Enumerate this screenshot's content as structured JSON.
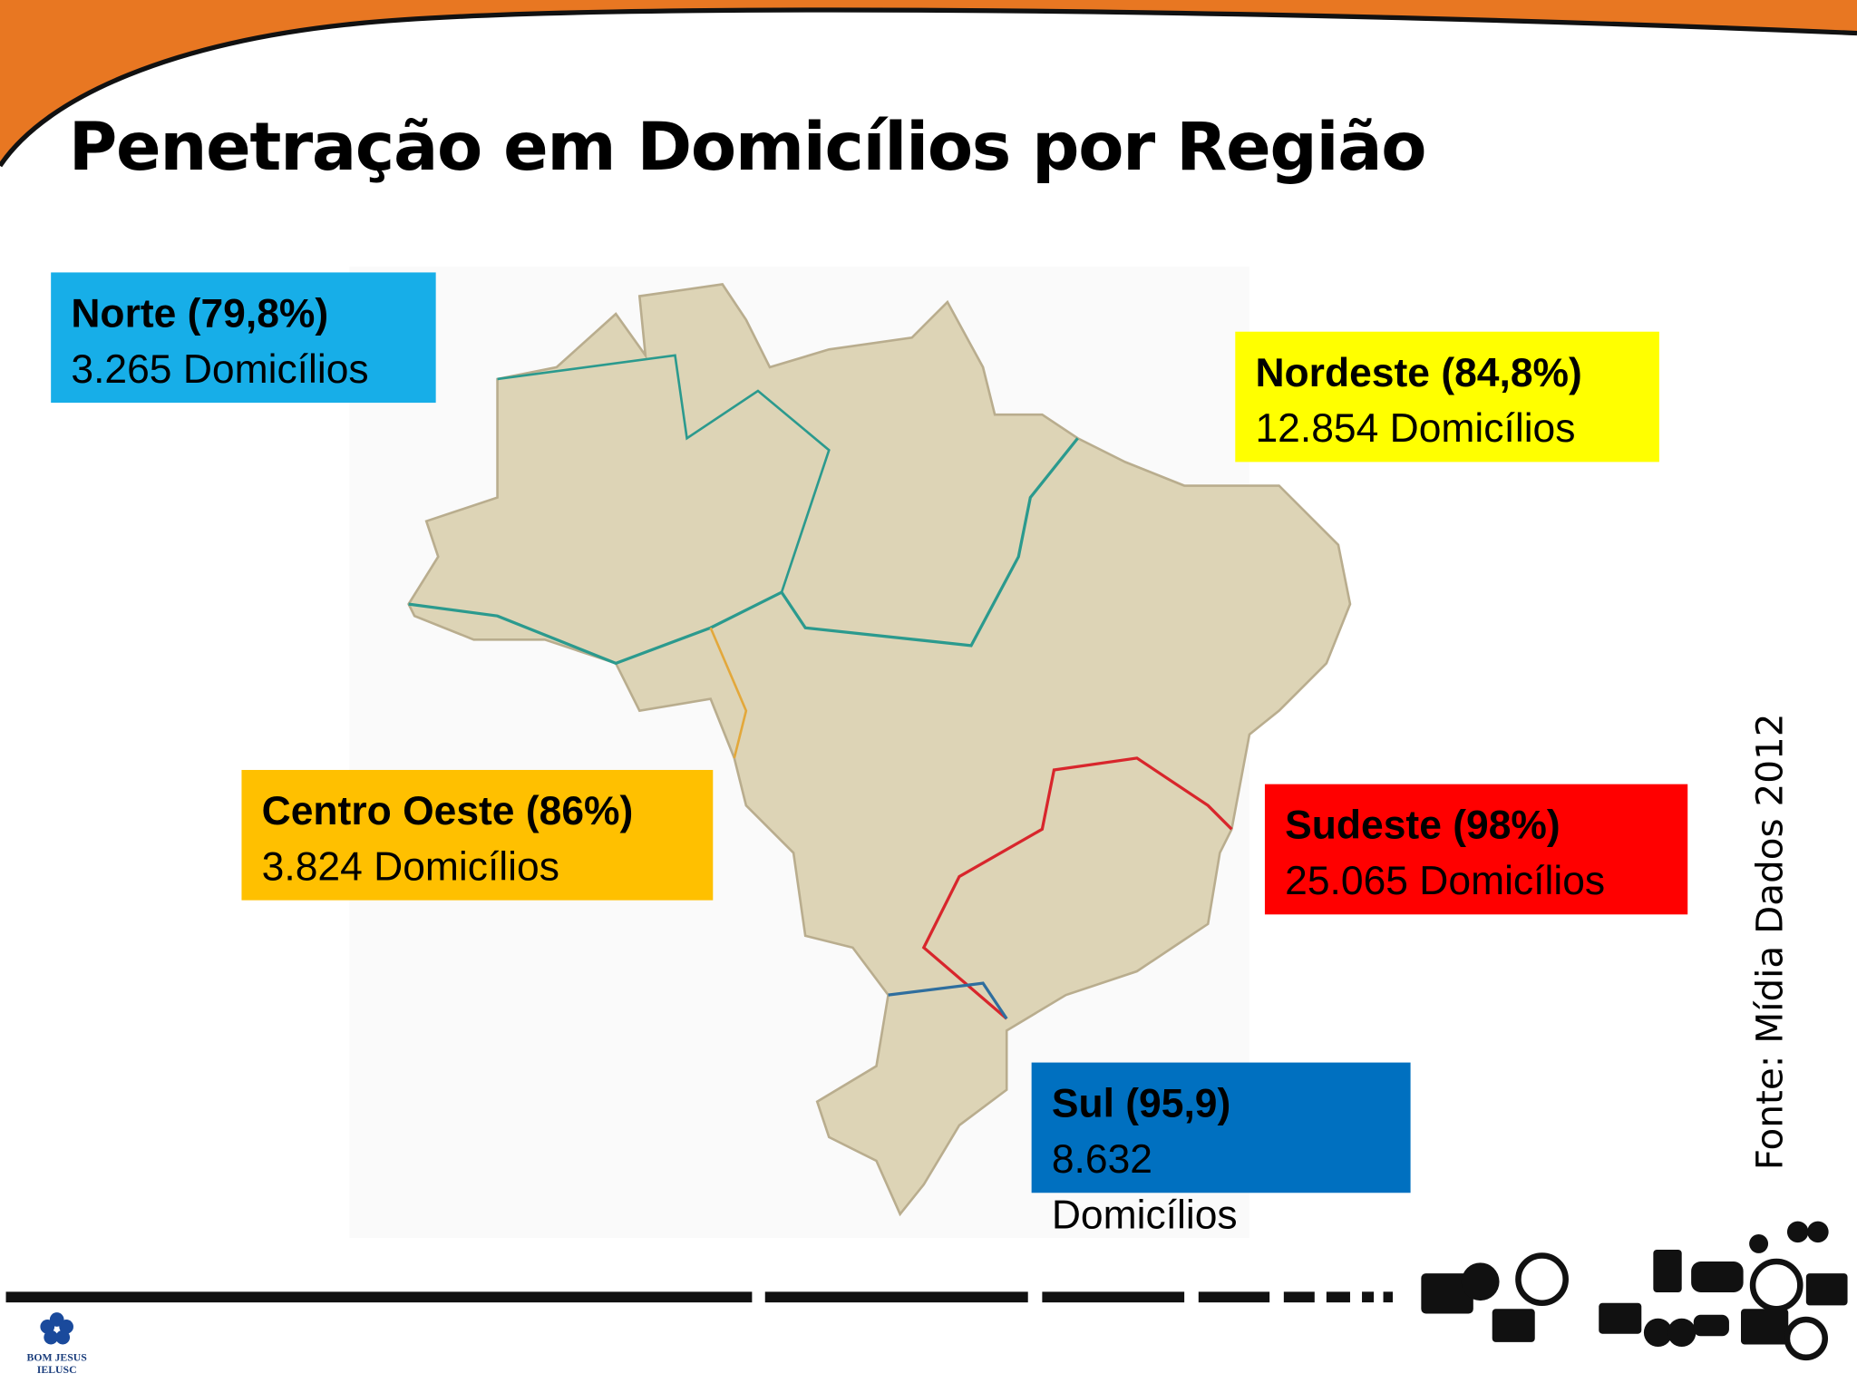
{
  "title": "Penetração em Domicílios por Região",
  "regions": [
    {
      "name": "Norte (79,8%)",
      "households": "3.265 Domicílios"
    },
    {
      "name": "Nordeste (84,8%)",
      "households": "12.854 Domicílios"
    },
    {
      "name": "Centro Oeste (86%)",
      "households": "3.824 Domicílios"
    },
    {
      "name": "Sudeste (98%)",
      "households": "25.065 Domicílios"
    },
    {
      "name": "Sul (95,9)",
      "households": "8.632 Domicílios"
    }
  ],
  "source": "Fonte: Mídia Dados 2012",
  "logo": {
    "line1": "BOM JESUS",
    "line2": "IELUSC"
  }
}
